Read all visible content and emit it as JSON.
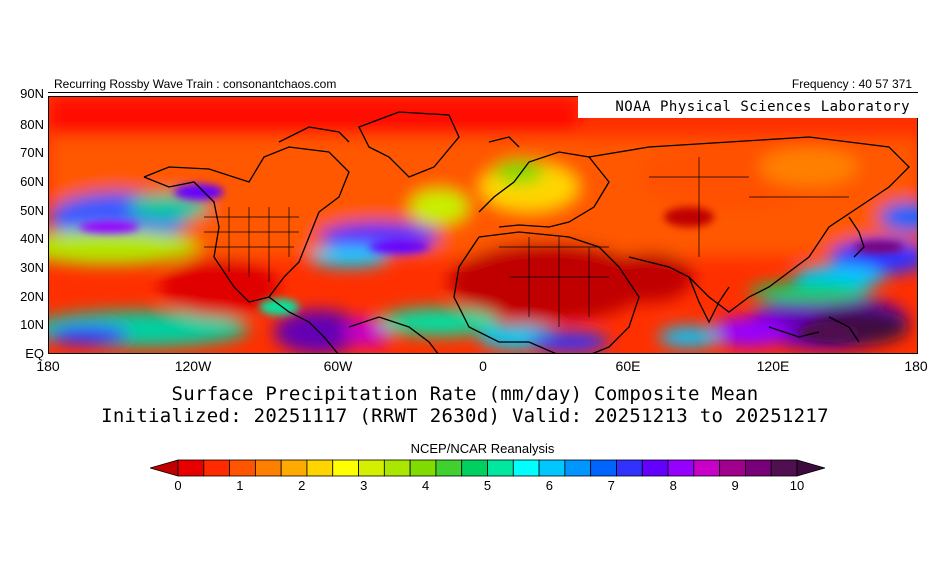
{
  "header": {
    "left": "Recurring Rossby Wave Train : consonantchaos.com",
    "right": "Frequency : 40 57 371"
  },
  "map": {
    "credit": "NOAA Physical Sciences Laboratory",
    "lat_labels": [
      "90N",
      "80N",
      "70N",
      "60N",
      "50N",
      "40N",
      "30N",
      "20N",
      "10N",
      "EQ"
    ],
    "lon_labels": [
      "180",
      "120W",
      "60W",
      "0",
      "60E",
      "120E",
      "180"
    ],
    "lat_range": [
      0,
      90
    ],
    "lon_range": [
      -180,
      180
    ]
  },
  "title": {
    "line1": "Surface Precipitation Rate (mm/day) Composite Mean",
    "line2": "Initialized: 20251117 (RRWT 2630d) Valid: 20251213 to 20251217",
    "source": "NCEP/NCAR Reanalysis"
  },
  "colorbar": {
    "ticks": [
      "0",
      "1",
      "2",
      "3",
      "4",
      "5",
      "6",
      "7",
      "8",
      "9",
      "10"
    ],
    "colors": [
      "#c00000",
      "#e80000",
      "#ff2a00",
      "#ff5500",
      "#ff8000",
      "#ffaa00",
      "#ffd500",
      "#ffff00",
      "#d4f000",
      "#aae600",
      "#80dc00",
      "#40d030",
      "#00d060",
      "#00e8a0",
      "#00ffff",
      "#00c8ff",
      "#0096ff",
      "#0064ff",
      "#3232ff",
      "#6400ff",
      "#9600ff",
      "#c800c8",
      "#a0008c",
      "#780078",
      "#501050",
      "#3c0a3c"
    ]
  }
}
